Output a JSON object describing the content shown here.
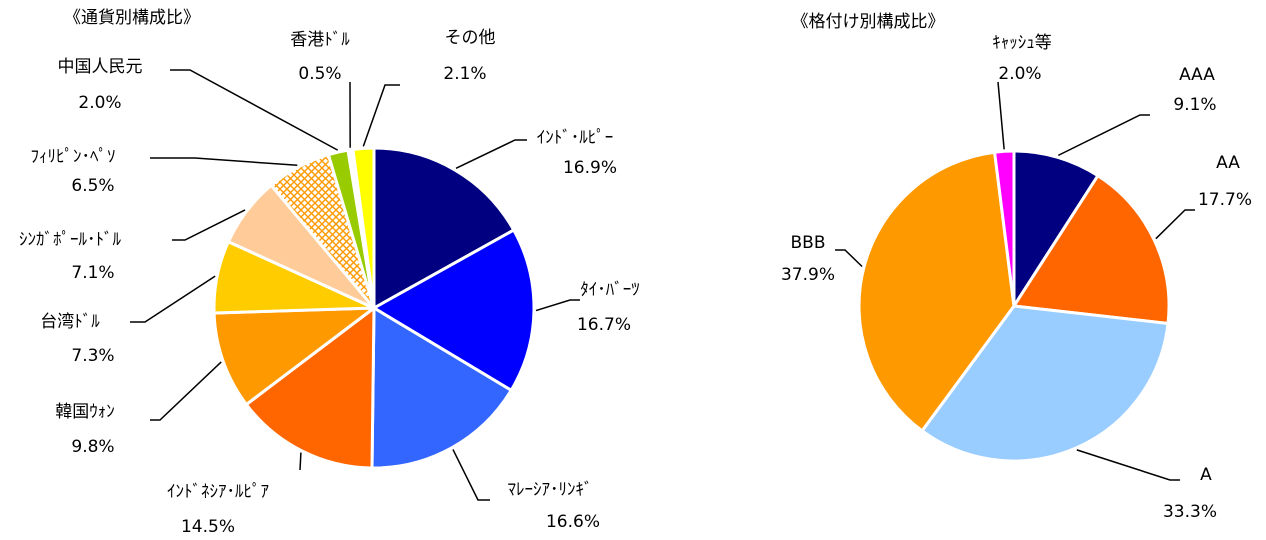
{
  "chart_data": [
    {
      "type": "pie",
      "title": "《通貨別構成比》",
      "categories": [
        "ｲﾝﾄﾞ･ﾙﾋﾟｰ",
        "ﾀｲ･ﾊﾞｰﾂ",
        "ﾏﾚｰｼｱ･ﾘﾝｷﾞ",
        "ｲﾝﾄﾞﾈｼｱ･ﾙﾋﾟｱ",
        "韓国ｳｫﾝ",
        "台湾ﾄﾞﾙ",
        "ｼﾝｶﾞﾎﾟｰﾙ･ﾄﾞﾙ",
        "ﾌｨﾘﾋﾟﾝ･ﾍﾟｿ",
        "中国人民元",
        "香港ﾄﾞﾙ",
        "その他"
      ],
      "values": [
        16.9,
        16.7,
        16.6,
        14.5,
        9.8,
        7.3,
        7.1,
        6.5,
        2.0,
        0.5,
        2.1
      ],
      "value_labels": [
        "16.9%",
        "16.7%",
        "16.6%",
        "14.5%",
        "9.8%",
        "7.3%",
        "7.1%",
        "6.5%",
        "2.0%",
        "0.5%",
        "2.1%"
      ],
      "colors": [
        "#000080",
        "#0000ff",
        "#3366ff",
        "#ff6600",
        "#ff9900",
        "#ffcc00",
        "#ffcc99",
        "#ff9900",
        "#99cc00",
        "#ffffff",
        "#ffff00"
      ],
      "hatched": [
        7
      ]
    },
    {
      "type": "pie",
      "title": "《格付け別構成比》",
      "categories": [
        "AAA",
        "AA",
        "A",
        "BBB",
        "ｷｬｯｼｭ等"
      ],
      "values": [
        9.1,
        17.7,
        33.3,
        37.9,
        2.0
      ],
      "value_labels": [
        "9.1%",
        "17.7%",
        "33.3%",
        "37.9%",
        "2.0%"
      ],
      "colors": [
        "#000080",
        "#ff6600",
        "#99ccff",
        "#ff9900",
        "#ff00ff"
      ],
      "hatched": []
    }
  ]
}
